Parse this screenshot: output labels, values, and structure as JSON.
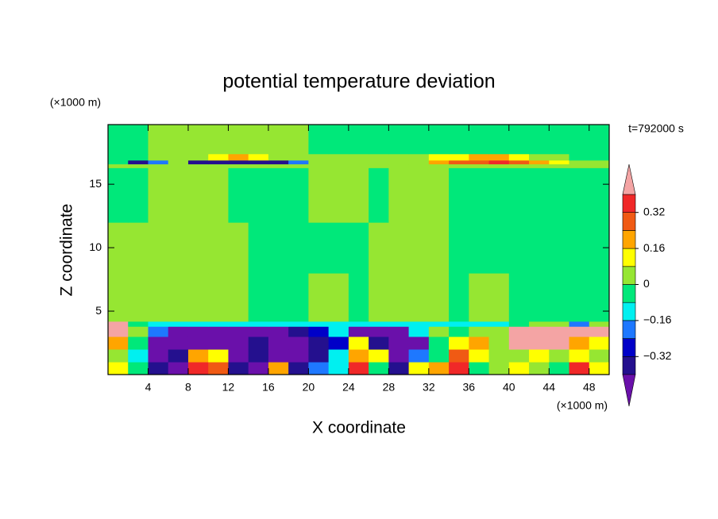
{
  "chart_data": {
    "type": "contour",
    "title": "potential temperature deviation",
    "x_label": "X coordinate",
    "y_label": "Z coordinate",
    "x_unit": "(×1000 m)",
    "y_unit": "(×1000 m)",
    "annotation": "t=792000 s",
    "xlim": [
      0,
      50
    ],
    "ylim": [
      0,
      19.7
    ],
    "xticks": [
      4,
      8,
      12,
      16,
      20,
      24,
      28,
      32,
      36,
      40,
      44,
      48
    ],
    "yticks": [
      5,
      10,
      15
    ],
    "levels": [
      -0.4,
      -0.32,
      -0.24,
      -0.16,
      -0.08,
      0,
      0.08,
      0.16,
      0.24,
      0.32,
      0.4
    ],
    "colors": [
      "#6a10aa",
      "#24108e",
      "#0000c8",
      "#1e78ff",
      "#00f0f0",
      "#00e87a",
      "#96e632",
      "#ffff00",
      "#ffa500",
      "#f05a14",
      "#f02828",
      "#f4a4a4"
    ],
    "colorbar_ticks": [
      0.32,
      0.16,
      0,
      {
        "value": -0.16,
        "label": "−0.16"
      },
      {
        "value": -0.32,
        "label": "−0.32"
      }
    ],
    "x_edges": [
      0,
      2,
      4,
      6,
      8,
      10,
      12,
      14,
      16,
      18,
      20,
      22,
      24,
      26,
      28,
      30,
      32,
      34,
      36,
      38,
      40,
      42,
      44,
      46,
      48,
      50
    ],
    "y_edges": [
      0,
      1,
      2,
      3,
      3.8,
      4.2,
      8,
      12,
      16.3,
      16.6,
      16.9,
      17.4,
      19.7
    ],
    "field": [
      [
        0.12,
        -0.04,
        -0.36,
        -0.45,
        0.36,
        0.28,
        -0.36,
        -0.45,
        0.2,
        -0.36,
        -0.2,
        -0.12,
        0.36,
        -0.04,
        -0.36,
        0.12,
        0.2,
        0.36,
        -0.04,
        0.04,
        0.12,
        0.04,
        -0.04,
        0.36,
        0.12
      ],
      [
        0.04,
        -0.12,
        -0.45,
        -0.36,
        0.2,
        0.12,
        -0.45,
        -0.36,
        -0.45,
        -0.45,
        -0.36,
        -0.12,
        0.2,
        0.12,
        -0.45,
        -0.2,
        -0.04,
        0.28,
        0.12,
        0.04,
        0.04,
        0.12,
        0.04,
        0.12,
        0.04
      ],
      [
        0.2,
        -0.04,
        -0.45,
        -0.45,
        -0.45,
        -0.45,
        -0.45,
        -0.36,
        -0.45,
        -0.45,
        -0.36,
        -0.28,
        0.12,
        -0.36,
        -0.45,
        -0.45,
        -0.04,
        0.12,
        0.2,
        0.04,
        0.45,
        0.45,
        0.45,
        0.2,
        0.12
      ],
      [
        0.45,
        0.04,
        -0.2,
        -0.45,
        -0.45,
        -0.45,
        -0.45,
        -0.45,
        -0.45,
        -0.36,
        -0.28,
        -0.12,
        -0.45,
        -0.45,
        -0.45,
        -0.12,
        0.04,
        -0.04,
        0.04,
        0.04,
        0.45,
        0.45,
        0.45,
        0.45,
        0.45
      ],
      [
        0.45,
        -0.04,
        -0.12,
        -0.12,
        -0.12,
        -0.12,
        -0.12,
        -0.12,
        -0.12,
        -0.12,
        -0.12,
        -0.12,
        -0.12,
        -0.12,
        -0.12,
        -0.12,
        -0.12,
        -0.12,
        -0.12,
        -0.12,
        -0.04,
        0.04,
        0.04,
        -0.2,
        0.04
      ],
      [
        0.04,
        0.04,
        0.04,
        0.04,
        0.04,
        0.04,
        0.04,
        -0.04,
        -0.04,
        -0.04,
        0.04,
        0.04,
        -0.04,
        0.04,
        0.04,
        0.04,
        0.04,
        -0.04,
        0.04,
        0.04,
        -0.04,
        -0.04,
        -0.04,
        -0.04,
        -0.04
      ],
      [
        0.04,
        0.04,
        0.04,
        0.04,
        0.04,
        0.04,
        0.04,
        -0.04,
        -0.04,
        -0.04,
        -0.04,
        -0.04,
        -0.04,
        0.04,
        0.04,
        0.04,
        0.04,
        -0.04,
        -0.04,
        -0.04,
        -0.04,
        -0.04,
        -0.04,
        -0.04,
        -0.04
      ],
      [
        -0.04,
        -0.04,
        0.04,
        0.04,
        0.04,
        0.04,
        -0.04,
        -0.04,
        -0.04,
        -0.04,
        0.04,
        0.04,
        0.04,
        -0.04,
        0.04,
        0.04,
        0.04,
        -0.04,
        -0.04,
        -0.04,
        -0.04,
        -0.04,
        -0.04,
        -0.04,
        -0.04
      ],
      [
        0.04,
        0.04,
        0.04,
        0.04,
        0.04,
        0.04,
        0.04,
        0.04,
        0.04,
        0.04,
        0.04,
        0.04,
        0.04,
        0.04,
        0.04,
        0.04,
        0.04,
        0.04,
        0.04,
        0.04,
        0.04,
        0.04,
        0.04,
        0.04,
        0.04
      ],
      [
        -0.04,
        -0.36,
        -0.2,
        0.04,
        -0.36,
        -0.36,
        -0.36,
        -0.36,
        -0.36,
        -0.2,
        0.04,
        0.04,
        0.04,
        0.04,
        0.04,
        0.04,
        0.2,
        0.28,
        0.28,
        0.36,
        0.28,
        0.2,
        0.12,
        0.04,
        0.04
      ],
      [
        -0.04,
        -0.04,
        0.04,
        0.04,
        0.04,
        0.12,
        0.2,
        0.12,
        0.04,
        0.04,
        0.04,
        0.04,
        0.04,
        0.04,
        0.04,
        0.04,
        0.12,
        0.12,
        0.2,
        0.2,
        0.12,
        0.04,
        0.04,
        -0.04,
        -0.04
      ],
      [
        -0.04,
        -0.04,
        0.04,
        0.04,
        0.04,
        0.04,
        0.04,
        0.04,
        0.04,
        0.04,
        -0.04,
        -0.04,
        -0.04,
        -0.04,
        -0.04,
        -0.04,
        -0.04,
        -0.04,
        -0.04,
        -0.04,
        -0.04,
        -0.04,
        -0.04,
        -0.04,
        -0.04
      ]
    ]
  }
}
